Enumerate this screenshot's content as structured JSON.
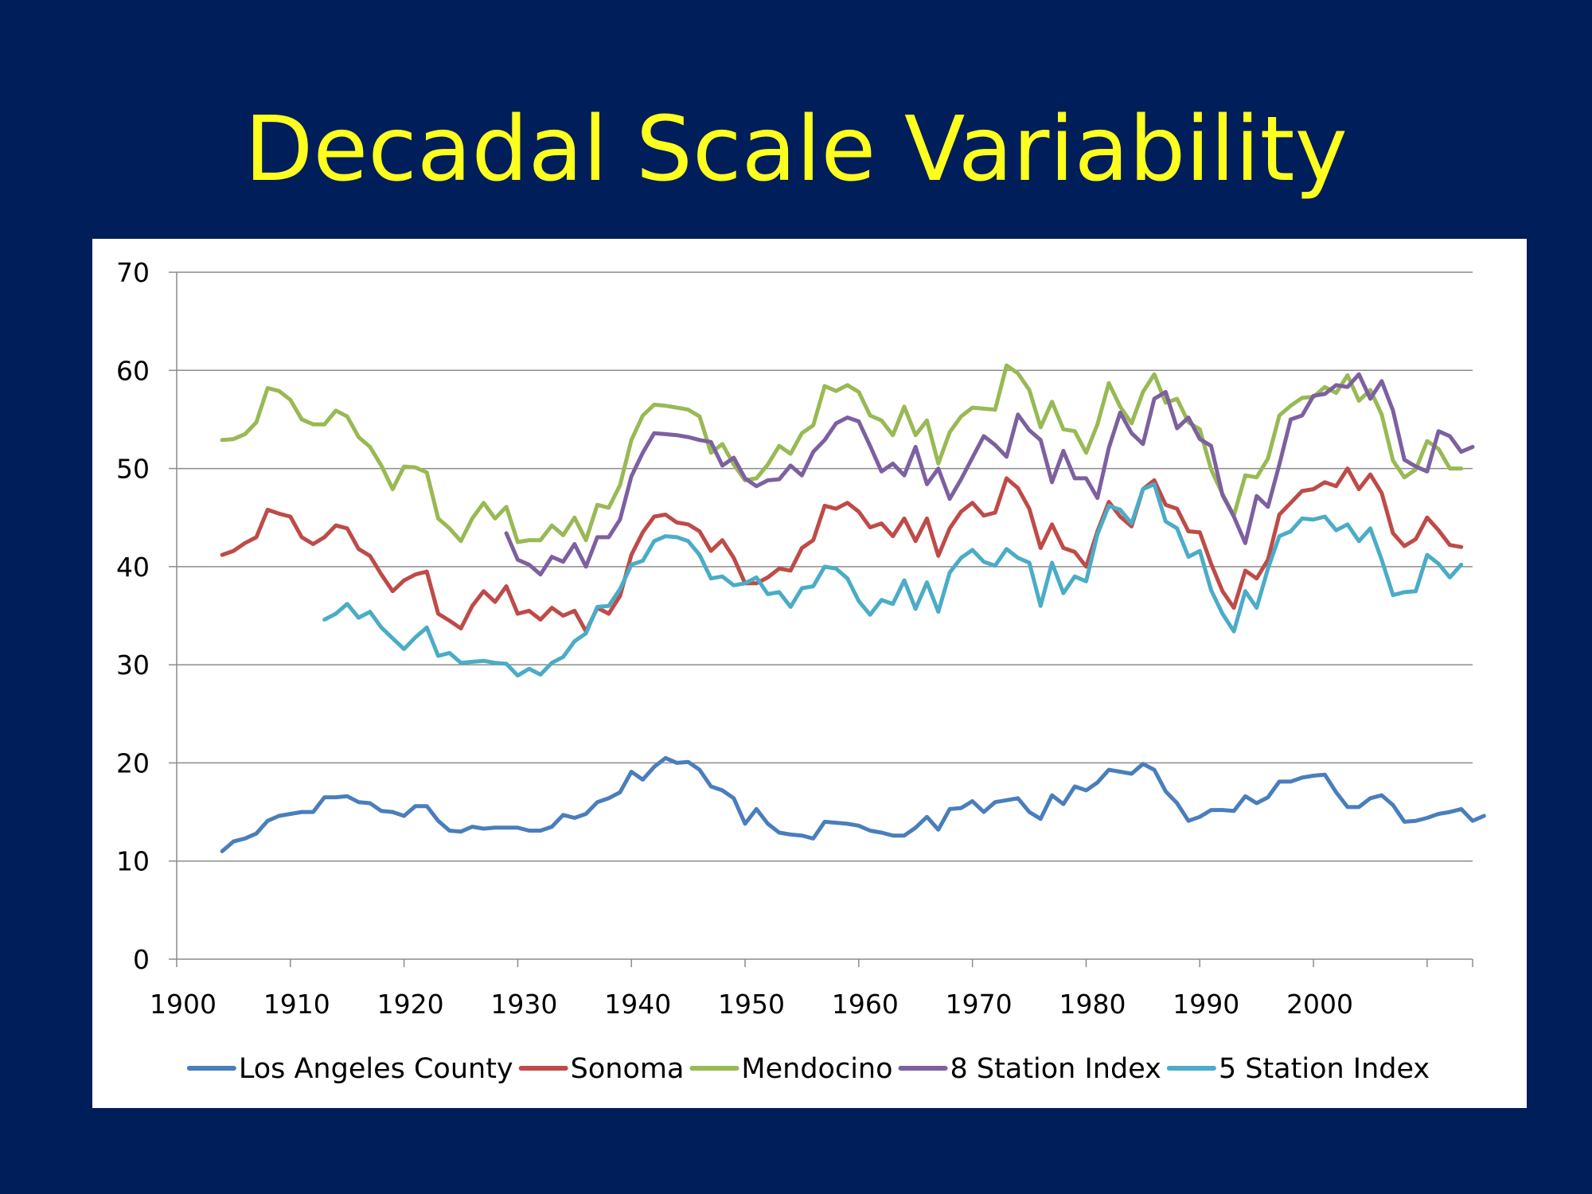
{
  "slide": {
    "title": "Decadal Scale Variability"
  },
  "chart_data": {
    "type": "line",
    "title": "",
    "xlabel": "",
    "ylabel": "",
    "xlim": [
      1900,
      2014
    ],
    "ylim": [
      0,
      70
    ],
    "xticks": [
      1900,
      1910,
      1920,
      1930,
      1940,
      1950,
      1960,
      1970,
      1980,
      1990,
      2000
    ],
    "yticks": [
      0,
      10,
      20,
      30,
      40,
      50,
      60,
      70
    ],
    "grid": "horizontal",
    "legend_position": "bottom",
    "series": [
      {
        "name": "Los Angeles County",
        "color": "#4A7EBB",
        "start_year": 1904,
        "values": [
          11.0,
          12.0,
          12.3,
          12.8,
          14.1,
          14.6,
          14.8,
          15.0,
          15.0,
          16.5,
          16.5,
          16.6,
          16.0,
          15.9,
          15.1,
          15.0,
          14.6,
          15.6,
          15.6,
          14.1,
          13.1,
          13.0,
          13.5,
          13.3,
          13.4,
          13.4,
          13.4,
          13.1,
          13.1,
          13.5,
          14.7,
          14.4,
          14.8,
          16.0,
          16.4,
          17.0,
          19.1,
          18.3,
          19.6,
          20.5,
          20.0,
          20.1,
          19.3,
          17.6,
          17.2,
          16.4,
          13.8,
          15.3,
          13.8,
          12.9,
          12.7,
          12.6,
          12.3,
          14.0,
          13.9,
          13.8,
          13.6,
          13.1,
          12.9,
          12.6,
          12.6,
          13.4,
          14.5,
          13.2,
          15.3,
          15.4,
          16.1,
          15.0,
          16.0,
          16.2,
          16.4,
          15.0,
          14.3,
          16.7,
          15.8,
          17.6,
          17.2,
          18.0,
          19.3,
          19.1,
          18.9,
          19.9,
          19.3,
          17.1,
          15.9,
          14.1,
          14.5,
          15.2,
          15.2,
          15.1,
          16.6,
          15.9,
          16.5,
          18.1,
          18.1,
          18.5,
          18.7,
          18.8,
          17.0,
          15.5,
          15.5,
          16.4,
          16.7,
          15.7,
          14.0,
          14.1,
          14.4,
          14.8,
          15.0,
          15.3,
          14.1,
          14.6
        ]
      },
      {
        "name": "Sonoma",
        "color": "#BE4B48",
        "start_year": 1904,
        "values": [
          41.2,
          41.6,
          42.4,
          43.0,
          45.8,
          45.4,
          45.1,
          43.0,
          42.3,
          43.0,
          44.2,
          43.9,
          41.8,
          41.1,
          39.2,
          37.5,
          38.6,
          39.2,
          39.5,
          35.2,
          34.5,
          33.7,
          36.0,
          37.5,
          36.4,
          38.0,
          35.2,
          35.5,
          34.6,
          35.8,
          35.0,
          35.5,
          33.4,
          35.8,
          35.2,
          37.0,
          41.2,
          43.5,
          45.1,
          45.3,
          44.5,
          44.3,
          43.6,
          41.6,
          42.7,
          40.9,
          38.3,
          38.3,
          38.9,
          39.8,
          39.6,
          41.9,
          42.7,
          46.2,
          45.9,
          46.5,
          45.6,
          44.0,
          44.4,
          43.1,
          44.9,
          42.6,
          44.9,
          41.1,
          43.9,
          45.6,
          46.5,
          45.2,
          45.5,
          49.0,
          48.0,
          45.9,
          41.9,
          44.3,
          41.9,
          41.5,
          40.0,
          43.6,
          46.6,
          45.1,
          44.1,
          47.9,
          48.8,
          46.3,
          45.9,
          43.6,
          43.5,
          40.3,
          37.5,
          35.8,
          39.6,
          38.8,
          40.7,
          45.3,
          46.5,
          47.7,
          47.9,
          48.6,
          48.2,
          50.0,
          47.9,
          49.4,
          47.5,
          43.4,
          42.1,
          42.8,
          45.0,
          43.7,
          42.2,
          42.0
        ]
      },
      {
        "name": "Mendocino",
        "color": "#98B954",
        "start_year": 1904,
        "values": [
          52.9,
          53.0,
          53.5,
          54.7,
          58.2,
          57.9,
          57.0,
          55.0,
          54.5,
          54.5,
          55.9,
          55.3,
          53.2,
          52.2,
          50.3,
          47.9,
          50.2,
          50.1,
          49.6,
          44.9,
          43.9,
          42.6,
          44.9,
          46.5,
          44.9,
          46.1,
          42.5,
          42.7,
          42.7,
          44.2,
          43.2,
          45.0,
          42.7,
          46.3,
          46.0,
          48.3,
          52.9,
          55.4,
          56.5,
          56.4,
          56.2,
          56.0,
          55.3,
          51.6,
          52.5,
          50.4,
          48.8,
          49.0,
          50.4,
          52.3,
          51.5,
          53.6,
          54.4,
          58.4,
          57.9,
          58.5,
          57.8,
          55.4,
          54.9,
          53.4,
          56.3,
          53.4,
          54.9,
          50.5,
          53.7,
          55.3,
          56.2,
          56.1,
          56.0,
          60.5,
          59.7,
          58.0,
          54.2,
          56.8,
          54.0,
          53.8,
          51.6,
          54.5,
          58.7,
          56.3,
          54.6,
          57.8,
          59.6,
          56.7,
          57.1,
          54.7,
          54.0,
          49.9,
          47.4,
          45.2,
          49.3,
          49.1,
          51.0,
          55.4,
          56.4,
          57.2,
          57.3,
          58.3,
          57.7,
          59.5,
          56.9,
          58.0,
          55.5,
          50.8,
          49.1,
          49.9,
          52.8,
          52.0,
          50.0,
          50.0
        ]
      },
      {
        "name": "8 Station Index",
        "color": "#7D60A0",
        "start_year": 1929,
        "values": [
          43.4,
          40.7,
          40.2,
          39.2,
          41.0,
          40.5,
          42.3,
          40.0,
          43.0,
          43.0,
          44.8,
          49.2,
          51.6,
          53.6,
          53.5,
          53.4,
          53.2,
          52.9,
          52.7,
          50.3,
          51.1,
          49.0,
          48.2,
          48.8,
          48.9,
          50.3,
          49.3,
          51.7,
          52.9,
          54.6,
          55.2,
          54.8,
          52.3,
          49.7,
          50.5,
          49.3,
          52.2,
          48.4,
          50.0,
          46.9,
          48.9,
          51.1,
          53.3,
          52.4,
          51.2,
          55.5,
          53.9,
          52.9,
          48.6,
          51.8,
          49.0,
          49.0,
          47.0,
          52.1,
          55.7,
          53.6,
          52.5,
          57.1,
          57.8,
          54.1,
          55.2,
          53.0,
          52.3,
          47.3,
          45.1,
          42.4,
          47.2,
          46.1,
          50.4,
          55.0,
          55.4,
          57.4,
          57.6,
          58.5,
          58.3,
          59.6,
          57.1,
          58.9,
          55.9,
          50.9,
          50.2,
          49.7,
          53.8,
          53.3,
          51.7,
          52.2
        ]
      },
      {
        "name": "5 Station Index",
        "color": "#4BACC6",
        "start_year": 1913,
        "values": [
          34.6,
          35.2,
          36.2,
          34.8,
          35.4,
          33.8,
          32.7,
          31.6,
          32.8,
          33.8,
          30.9,
          31.2,
          30.2,
          30.3,
          30.4,
          30.2,
          30.1,
          28.9,
          29.6,
          29.0,
          30.2,
          30.8,
          32.4,
          33.2,
          35.9,
          36.0,
          37.7,
          40.2,
          40.6,
          42.6,
          43.1,
          43.0,
          42.6,
          41.2,
          38.8,
          39.0,
          38.1,
          38.3,
          38.9,
          37.2,
          37.4,
          35.9,
          37.8,
          38.0,
          40.0,
          39.8,
          38.8,
          36.5,
          35.1,
          36.6,
          36.2,
          38.6,
          35.7,
          38.4,
          35.4,
          39.4,
          40.9,
          41.7,
          40.5,
          40.1,
          41.8,
          40.9,
          40.4,
          36.0,
          40.4,
          37.3,
          39.0,
          38.5,
          43.3,
          46.2,
          45.8,
          44.4,
          47.9,
          48.4,
          44.6,
          43.9,
          41.0,
          41.6,
          37.6,
          35.2,
          33.4,
          37.5,
          35.8,
          39.8,
          43.1,
          43.6,
          44.9,
          44.8,
          45.1,
          43.7,
          44.3,
          42.6,
          43.9,
          40.7,
          37.1,
          37.4,
          37.5,
          41.2,
          40.3,
          38.9,
          40.2
        ]
      }
    ]
  }
}
